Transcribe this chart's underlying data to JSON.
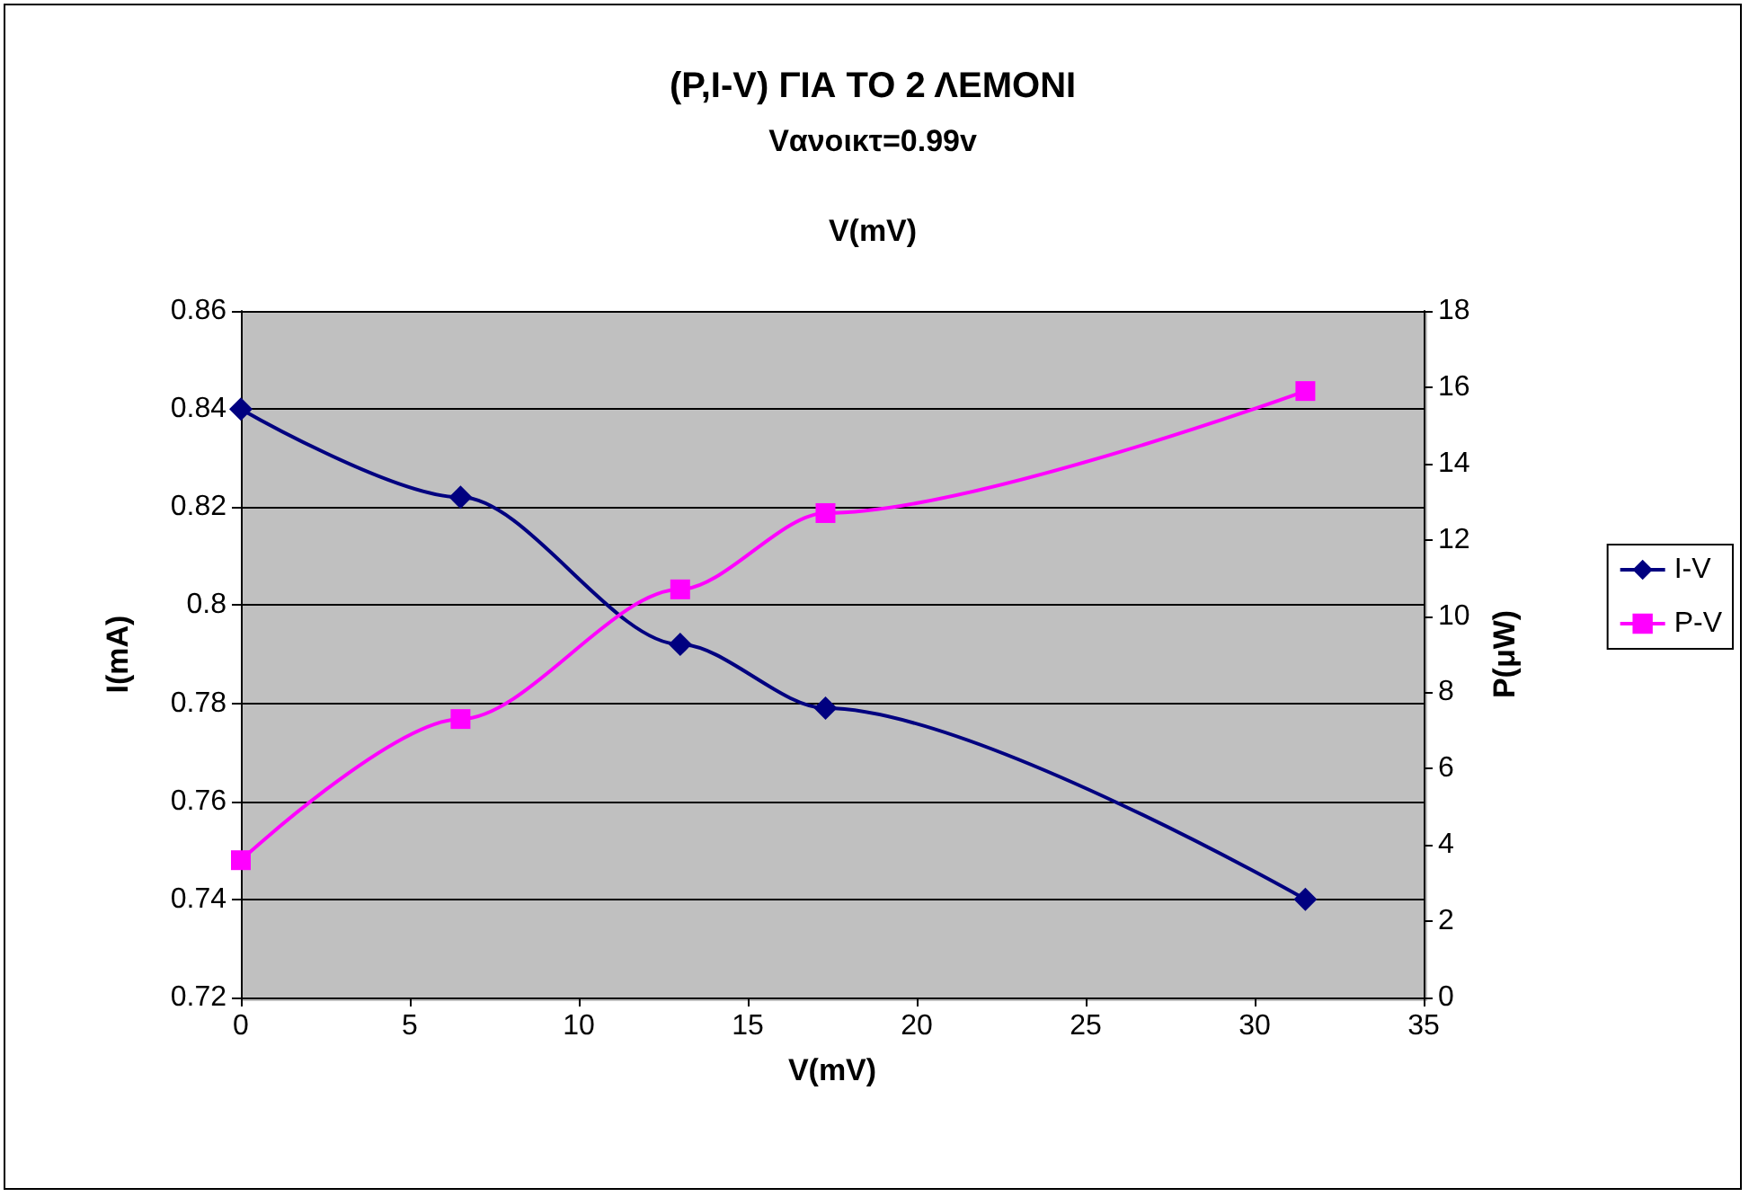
{
  "chart_data": {
    "type": "line",
    "title": "(P,I-V) ΓΙΑ ΤΟ 2 ΛΕΜΟΝΙ",
    "subtitle": "Vανοικτ=0.99v",
    "annotations": [
      "V(mV)"
    ],
    "xlabel": "V(mV)",
    "ylabel": "I(mA)",
    "y2label": "P(μW)",
    "x": [
      0,
      6.5,
      13,
      17.3,
      31.5
    ],
    "series": [
      {
        "name": "I-V",
        "color": "#000080",
        "marker": "diamond",
        "values": [
          0.84,
          0.822,
          0.792,
          0.779,
          0.74
        ]
      },
      {
        "name": "P-V",
        "color": "#ff00ff",
        "marker": "square",
        "axis": "y2",
        "values": [
          3.6,
          7.3,
          10.7,
          12.7,
          15.9
        ]
      }
    ],
    "xlim": [
      0,
      35
    ],
    "xticks": [
      0,
      5,
      10,
      15,
      20,
      25,
      30,
      35
    ],
    "ylim": [
      0.72,
      0.86
    ],
    "yticks": [
      0.72,
      0.74,
      0.76,
      0.78,
      0.8,
      0.82,
      0.84,
      0.86
    ],
    "y2lim": [
      0,
      18
    ],
    "y2ticks": [
      0,
      2,
      4,
      6,
      8,
      10,
      12,
      14,
      16,
      18
    ],
    "grid": "y",
    "legend": "right"
  }
}
